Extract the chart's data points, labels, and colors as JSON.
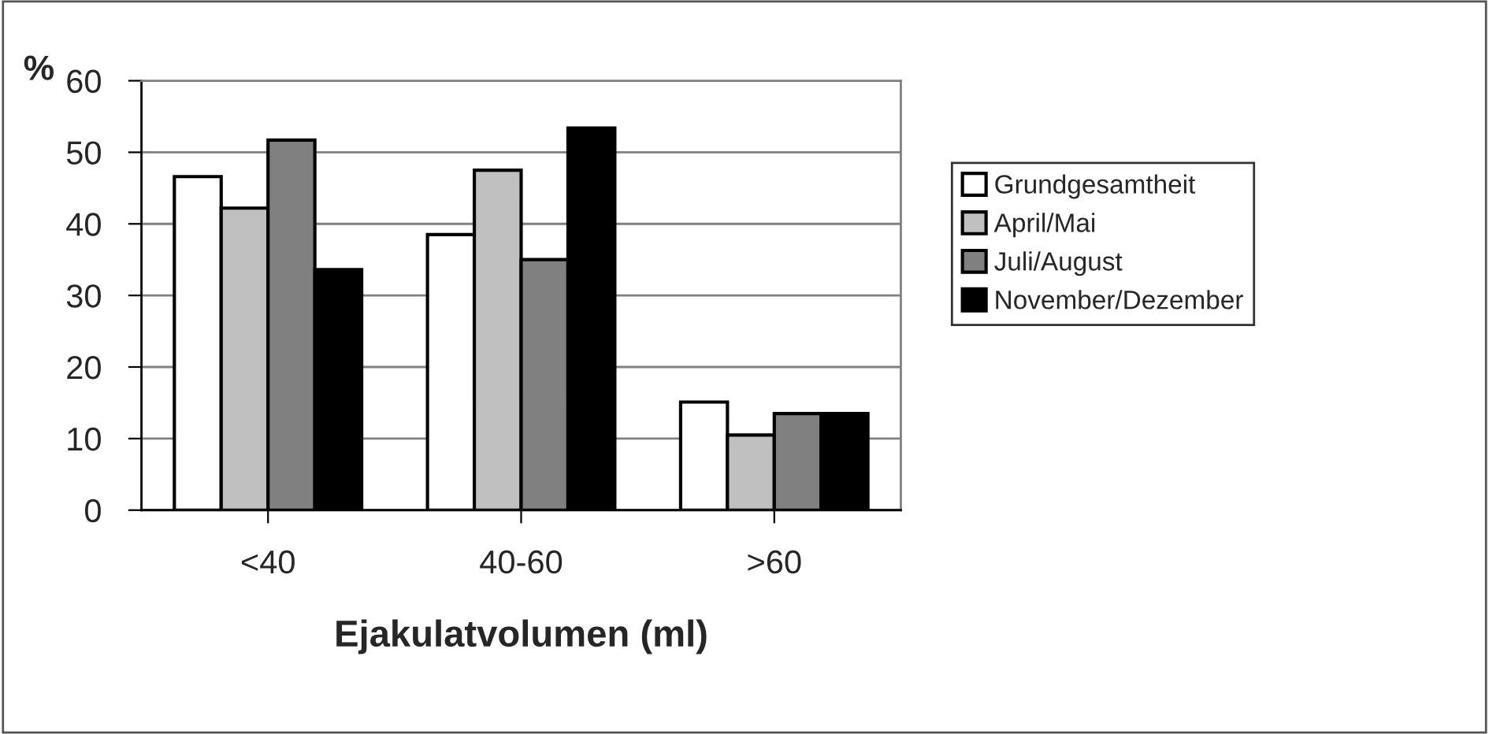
{
  "chart_data": {
    "type": "bar",
    "xlabel": "Ejakulatvolumen (ml)",
    "ylabel": "%",
    "categories": [
      "<40",
      "40-60",
      ">60"
    ],
    "series": [
      {
        "name": "Grundgesamtheit",
        "color": "#ffffff",
        "values": [
          46.6,
          38.5,
          15.1
        ]
      },
      {
        "name": "April/Mai",
        "color": "#c0c0c0",
        "values": [
          42.2,
          47.5,
          10.5
        ]
      },
      {
        "name": "Juli/August",
        "color": "#808080",
        "values": [
          51.7,
          35.0,
          13.5
        ]
      },
      {
        "name": "November/Dezember",
        "color": "#000000",
        "values": [
          33.6,
          53.4,
          13.5
        ]
      }
    ],
    "ylim": [
      0,
      60
    ],
    "yticks": [
      0,
      10,
      20,
      30,
      40,
      50,
      60
    ],
    "grid": "y",
    "legend": "right"
  }
}
